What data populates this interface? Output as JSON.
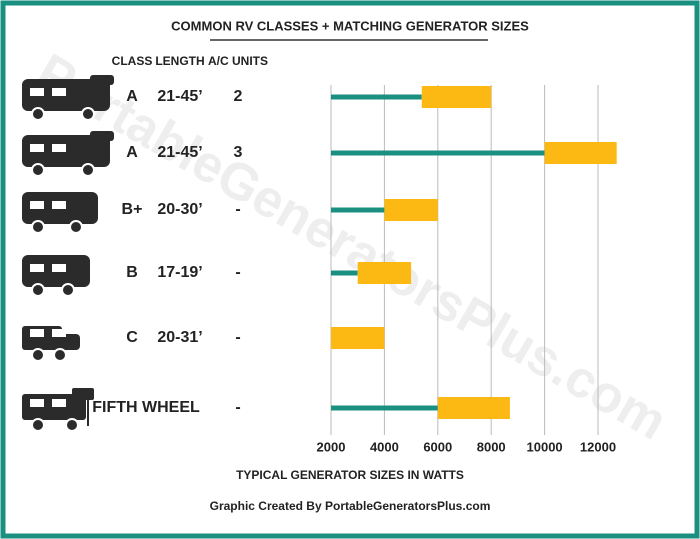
{
  "chart_data": {
    "type": "range-bar",
    "title": "COMMON RV CLASSES + MATCHING GENERATOR SIZES",
    "watermark": "PortableGeneratorsPlus.com",
    "columns": [
      "CLASS",
      "LENGTH",
      "A/C UNITS"
    ],
    "rows": [
      {
        "class": "A",
        "length": "21-45’",
        "ac": "2"
      },
      {
        "class": "A",
        "length": "21-45’",
        "ac": "3"
      },
      {
        "class": "B+",
        "length": "20-30’",
        "ac": "-"
      },
      {
        "class": "B",
        "length": "17-19’",
        "ac": "-"
      },
      {
        "class": "C",
        "length": "20-31’",
        "ac": "-"
      },
      {
        "class": "FIFTH WHEEL",
        "ac": "-"
      }
    ],
    "low": [
      5400,
      10000,
      4000,
      3000,
      2000,
      6000
    ],
    "high": [
      8000,
      12700,
      6000,
      5000,
      4000,
      8700
    ],
    "line_color": "#1a9080",
    "bar_color": "#fdb913",
    "xlim": [
      2000,
      12000
    ],
    "xticks": [
      2000,
      4000,
      6000,
      8000,
      10000,
      12000
    ],
    "xlabel": "TYPICAL GENERATOR SIZES IN WATTS",
    "grid": true,
    "footer": "Graphic Created By PortableGeneratorsPlus.com"
  }
}
